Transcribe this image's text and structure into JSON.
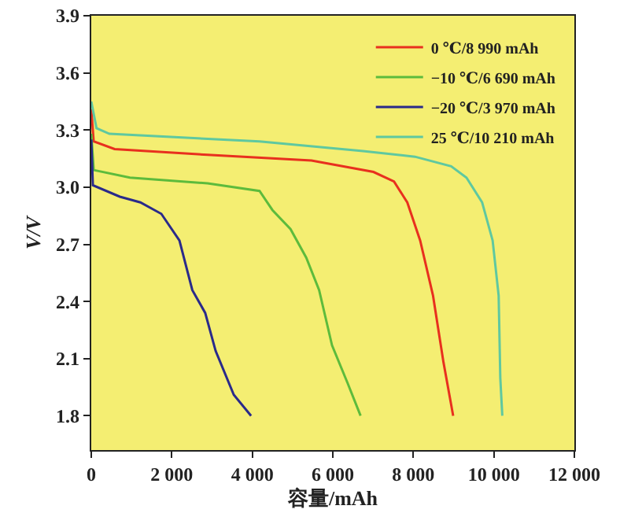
{
  "chart_data": {
    "type": "line",
    "xlabel": "容量/mAh",
    "ylabel": "V/V",
    "xlim": [
      0,
      12000
    ],
    "xticks": [
      0,
      {
        "value": 2000,
        "label": "2 000"
      },
      {
        "value": 4000,
        "label": "4 000"
      },
      {
        "value": 6000,
        "label": "6 000"
      },
      {
        "value": 8000,
        "label": "8 000"
      },
      {
        "value": 10000,
        "label": "10 000"
      },
      {
        "value": 12000,
        "label": "12 000"
      }
    ],
    "ylim": [
      1.62,
      3.9
    ],
    "yticks": [
      1.8,
      2.1,
      2.4,
      2.7,
      {
        "value": 3,
        "label": "3.0"
      },
      3.3,
      3.6,
      3.9
    ],
    "grid": false,
    "legend": "top right",
    "marker": "none",
    "line_style": "solid",
    "series": [
      {
        "name": "0 ℃/8 990 mAh",
        "color": "#e8301e",
        "x": [
          0,
          60,
          580,
          2890,
          5470,
          7010,
          7520,
          7850,
          8170,
          8490,
          8750,
          8990
        ],
        "values": [
          3.41,
          3.24,
          3.2,
          3.17,
          3.14,
          3.08,
          3.03,
          2.92,
          2.72,
          2.43,
          2.08,
          1.8
        ]
      },
      {
        "name": "−10 ℃/6 690 mAh",
        "color": "#5dbb3c",
        "x": [
          0,
          60,
          960,
          2890,
          4180,
          4500,
          4950,
          5340,
          5660,
          5980,
          6370,
          6690
        ],
        "values": [
          3.28,
          3.09,
          3.05,
          3.02,
          2.98,
          2.88,
          2.78,
          2.63,
          2.46,
          2.17,
          1.97,
          1.8
        ]
      },
      {
        "name": "−20 ℃/3 970 mAh",
        "color": "#2a2a8a",
        "x": [
          0,
          40,
          710,
          1220,
          1740,
          2190,
          2510,
          2830,
          3090,
          3540,
          3970
        ],
        "values": [
          3.25,
          3.01,
          2.95,
          2.92,
          2.86,
          2.72,
          2.46,
          2.34,
          2.14,
          1.91,
          1.8
        ]
      },
      {
        "name": "25 ℃/10 210 mAh",
        "color": "#5fc8a0",
        "x": [
          0,
          130,
          450,
          4180,
          6750,
          8040,
          8940,
          9320,
          9710,
          9970,
          10120,
          10160,
          10210
        ],
        "values": [
          3.45,
          3.31,
          3.28,
          3.24,
          3.19,
          3.16,
          3.11,
          3.05,
          2.92,
          2.72,
          2.43,
          2.0,
          1.8
        ]
      }
    ]
  }
}
